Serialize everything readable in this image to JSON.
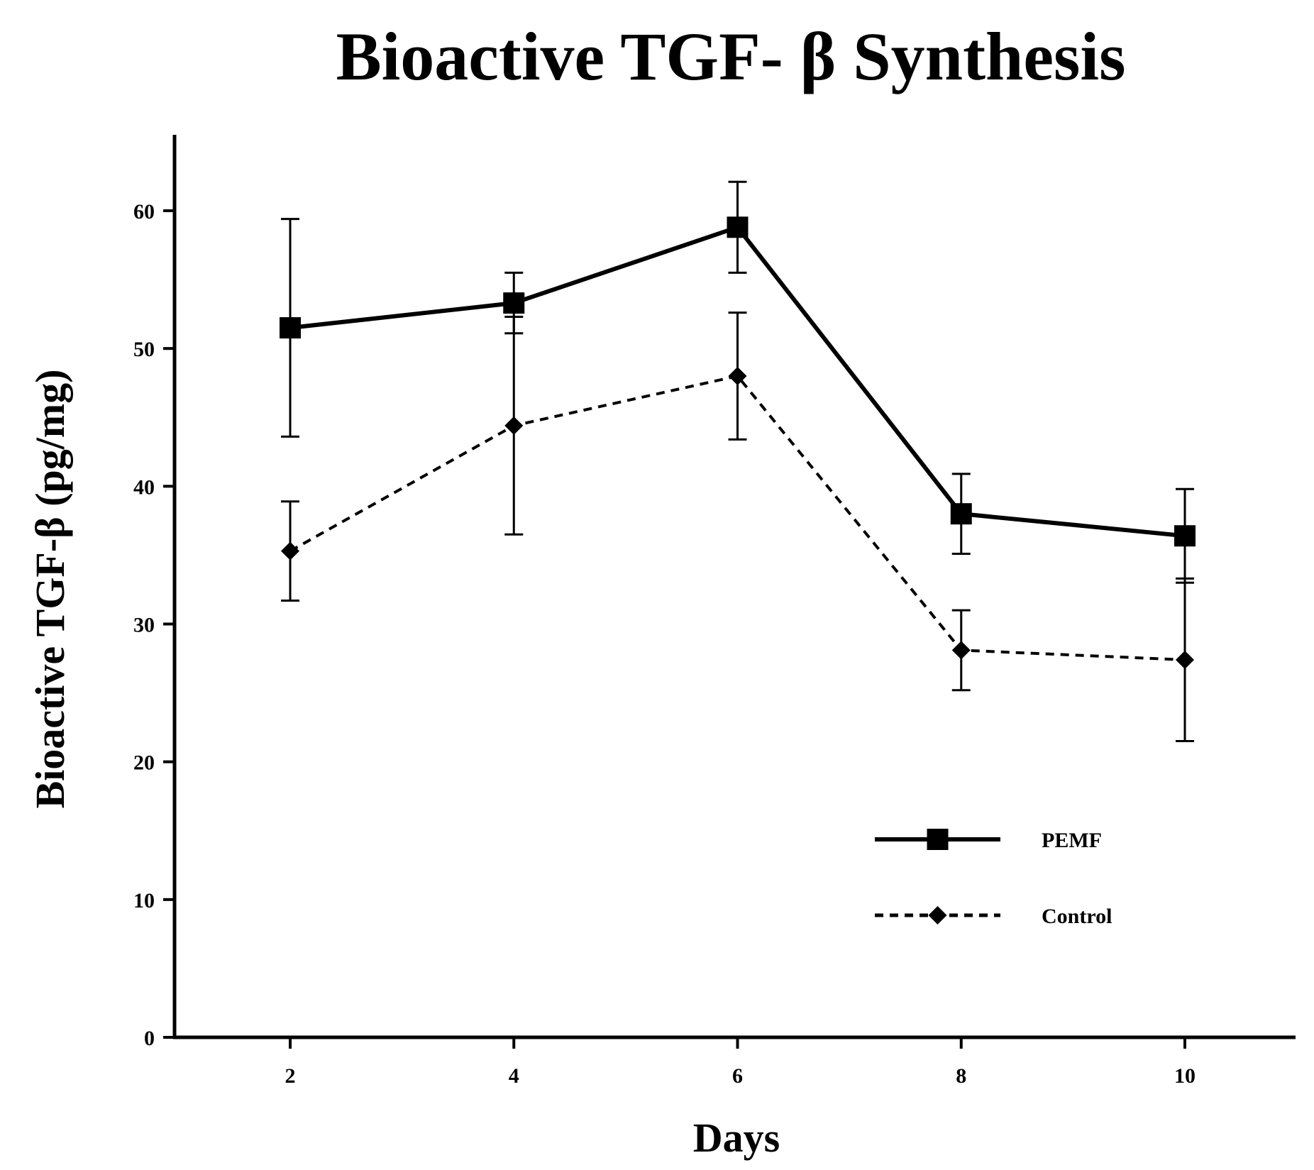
{
  "chart_data": {
    "type": "line",
    "title": "Bioactive TGF- β Synthesis",
    "xlabel": "Days",
    "ylabel": "Bioactive TGF-β (pg/mg)",
    "x": [
      2,
      4,
      6,
      8,
      10
    ],
    "xlim": [
      1,
      11
    ],
    "ylim": [
      0,
      65
    ],
    "xticks": [
      2,
      4,
      6,
      8,
      10
    ],
    "yticks": [
      0,
      10,
      20,
      30,
      40,
      50,
      60
    ],
    "grid": false,
    "legend_position": "bottom-right",
    "series": [
      {
        "name": "PEMF",
        "style": "solid",
        "marker": "square",
        "values": [
          51.5,
          53.3,
          58.8,
          38.0,
          36.4
        ],
        "error": [
          7.9,
          2.2,
          3.3,
          2.9,
          3.4
        ]
      },
      {
        "name": "Control",
        "style": "dashed",
        "marker": "diamond",
        "values": [
          35.3,
          44.4,
          48.0,
          28.1,
          27.4
        ],
        "error": [
          3.6,
          7.9,
          4.6,
          2.9,
          5.9
        ]
      }
    ],
    "colors": {
      "line": "#000000",
      "background": "#ffffff"
    }
  }
}
